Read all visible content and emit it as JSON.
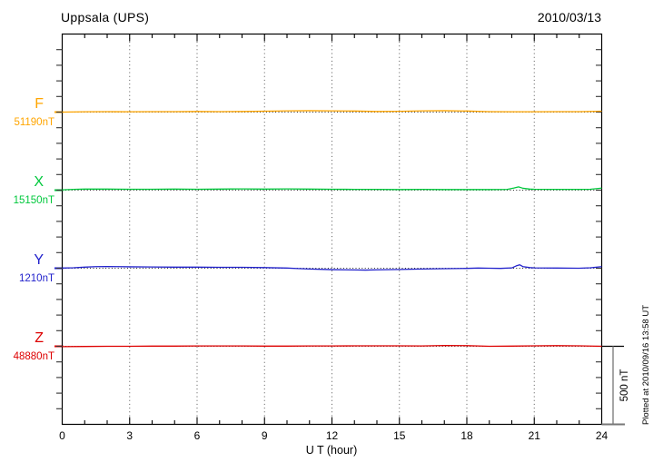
{
  "header": {
    "title": "Uppsala (UPS)",
    "date": "2010/03/13"
  },
  "footer": {
    "plotted_at": "Plotted at 2010/09/16 13:58 UT"
  },
  "chart_data": {
    "type": "line",
    "title": "Uppsala (UPS)",
    "subtitle": "2010/03/13",
    "xlabel": "U T (hour)",
    "xlim": [
      0,
      24
    ],
    "x_major_ticks": [
      0,
      3,
      6,
      9,
      12,
      15,
      18,
      21,
      24
    ],
    "x_minor_tick_every_hours": 1,
    "grid_hours": [
      3,
      6,
      9,
      12,
      15,
      18,
      21
    ],
    "grid_style": "vertical-dotted",
    "y_scale_bar": {
      "label": "500 nT",
      "nT": 500
    },
    "series": [
      {
        "name": "F",
        "baseline_label": "51190nT",
        "baseline_nT": 51190,
        "color": "#FFA500",
        "points_hour_offsetNT": [
          [
            0,
            0
          ],
          [
            1,
            2
          ],
          [
            2,
            3
          ],
          [
            3,
            2
          ],
          [
            4,
            3
          ],
          [
            5,
            3
          ],
          [
            6,
            4
          ],
          [
            7,
            3
          ],
          [
            8,
            4
          ],
          [
            9,
            6
          ],
          [
            10,
            8
          ],
          [
            11,
            9
          ],
          [
            12,
            8
          ],
          [
            13,
            7
          ],
          [
            14,
            4
          ],
          [
            15,
            5
          ],
          [
            16,
            8
          ],
          [
            17,
            9
          ],
          [
            18,
            7
          ],
          [
            19,
            3
          ],
          [
            20,
            2
          ],
          [
            21,
            2
          ],
          [
            22,
            3
          ],
          [
            23,
            3
          ],
          [
            24,
            6
          ]
        ]
      },
      {
        "name": "X",
        "baseline_label": "15150nT",
        "baseline_nT": 15150,
        "color": "#00C83C",
        "points_hour_offsetNT": [
          [
            0,
            2
          ],
          [
            0.5,
            5
          ],
          [
            1,
            7
          ],
          [
            2,
            7
          ],
          [
            3,
            6
          ],
          [
            4,
            6
          ],
          [
            5,
            7
          ],
          [
            6,
            6
          ],
          [
            7,
            7
          ],
          [
            8,
            8
          ],
          [
            9,
            7
          ],
          [
            10,
            8
          ],
          [
            11,
            7
          ],
          [
            12,
            6
          ],
          [
            13,
            5
          ],
          [
            14,
            5
          ],
          [
            15,
            4
          ],
          [
            16,
            5
          ],
          [
            17,
            4
          ],
          [
            18,
            4
          ],
          [
            19,
            4
          ],
          [
            19.8,
            5
          ],
          [
            20.1,
            14
          ],
          [
            20.3,
            21
          ],
          [
            20.5,
            12
          ],
          [
            20.8,
            7
          ],
          [
            21,
            6
          ],
          [
            22,
            5
          ],
          [
            23,
            5
          ],
          [
            23.5,
            6
          ],
          [
            24,
            13
          ]
        ]
      },
      {
        "name": "Y",
        "baseline_label": "1210nT",
        "baseline_nT": 1210,
        "color": "#2222CC",
        "points_hour_offsetNT": [
          [
            0,
            1
          ],
          [
            0.5,
            3
          ],
          [
            1,
            7
          ],
          [
            1.5,
            10
          ],
          [
            2,
            11
          ],
          [
            2.5,
            10
          ],
          [
            3,
            9
          ],
          [
            4,
            8
          ],
          [
            5,
            7
          ],
          [
            6,
            7
          ],
          [
            7,
            6
          ],
          [
            8,
            6
          ],
          [
            9,
            4
          ],
          [
            10,
            1
          ],
          [
            10.5,
            -2
          ],
          [
            11,
            -5
          ],
          [
            12,
            -9
          ],
          [
            13,
            -11
          ],
          [
            13.5,
            -12
          ],
          [
            14,
            -10
          ],
          [
            15,
            -8
          ],
          [
            16,
            -5
          ],
          [
            17,
            -3
          ],
          [
            18,
            -1
          ],
          [
            18.5,
            1
          ],
          [
            19,
            0
          ],
          [
            19.5,
            -1
          ],
          [
            20,
            2
          ],
          [
            20.2,
            15
          ],
          [
            20.35,
            22
          ],
          [
            20.5,
            10
          ],
          [
            20.8,
            4
          ],
          [
            21,
            2
          ],
          [
            22,
            1
          ],
          [
            23,
            0
          ],
          [
            23.5,
            3
          ],
          [
            24,
            10
          ]
        ]
      },
      {
        "name": "Z",
        "baseline_label": "48880nT",
        "baseline_nT": 48880,
        "color": "#DD0000",
        "points_hour_offsetNT": [
          [
            0,
            -2
          ],
          [
            1,
            -1
          ],
          [
            2,
            0
          ],
          [
            3,
            0
          ],
          [
            4,
            1
          ],
          [
            5,
            1
          ],
          [
            6,
            2
          ],
          [
            7,
            2
          ],
          [
            8,
            2
          ],
          [
            9,
            1
          ],
          [
            10,
            1
          ],
          [
            11,
            2
          ],
          [
            12,
            2
          ],
          [
            13,
            3
          ],
          [
            14,
            3
          ],
          [
            15,
            3
          ],
          [
            16,
            2
          ],
          [
            17,
            5
          ],
          [
            18,
            4
          ],
          [
            18.5,
            2
          ],
          [
            19,
            0
          ],
          [
            20,
            1
          ],
          [
            21,
            3
          ],
          [
            22,
            4
          ],
          [
            23,
            3
          ],
          [
            24,
            0
          ]
        ]
      }
    ]
  }
}
